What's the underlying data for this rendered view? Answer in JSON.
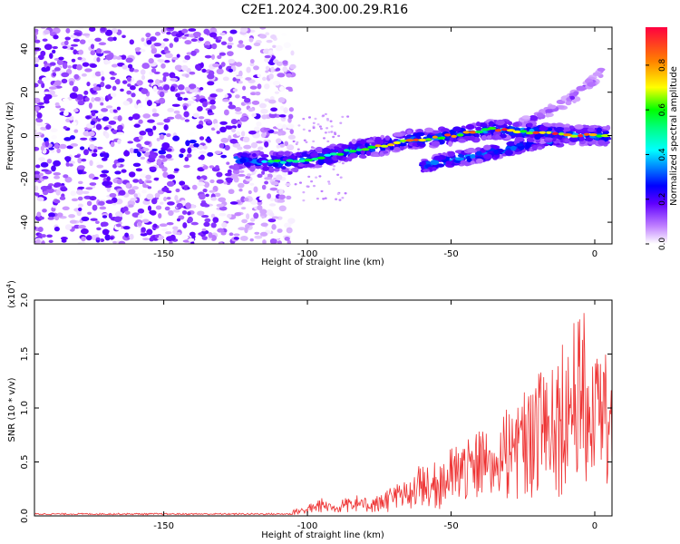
{
  "title": "C2E1.2024.300.00.29.R16",
  "chart_data": [
    {
      "type": "heatmap",
      "xlabel": "Height of straight line (km)",
      "ylabel": "Frequency (Hz)",
      "xlim": [
        -195,
        6
      ],
      "ylim": [
        -50,
        50
      ],
      "x_ticks": [
        -150,
        -100,
        -50,
        0
      ],
      "y_ticks": [
        -40,
        -20,
        0,
        20,
        40
      ],
      "colorbar": {
        "label": "Normalized spectral amplitude",
        "range": [
          0.0,
          0.97
        ],
        "ticks": [
          0.0,
          0.2,
          0.4,
          0.6,
          0.8
        ],
        "tick_labels": [
          "0.0",
          "0.2",
          "0.4",
          "0.6",
          "0.8"
        ],
        "stops": [
          {
            "v": 0.0,
            "color": "#ffffff"
          },
          {
            "v": 0.08,
            "color": "#c080ff"
          },
          {
            "v": 0.18,
            "color": "#6000ff"
          },
          {
            "v": 0.26,
            "color": "#0000ff"
          },
          {
            "v": 0.34,
            "color": "#0080ff"
          },
          {
            "v": 0.42,
            "color": "#00ffff"
          },
          {
            "v": 0.52,
            "color": "#00ff80"
          },
          {
            "v": 0.6,
            "color": "#00ff00"
          },
          {
            "v": 0.7,
            "color": "#ffff00"
          },
          {
            "v": 0.82,
            "color": "#ff8000"
          },
          {
            "v": 0.97,
            "color": "#ff0040"
          }
        ]
      },
      "trace_main": {
        "x": [
          -125,
          -115,
          -105,
          -95,
          -85,
          -75,
          -65,
          -55,
          -45,
          -35,
          -25,
          -15,
          -5,
          0,
          5
        ],
        "freq": [
          -11,
          -12,
          -12,
          -10,
          -7,
          -5,
          -2,
          -1,
          1,
          3,
          2,
          1,
          0,
          0,
          0
        ]
      },
      "trace_lower": {
        "x": [
          -60,
          -50,
          -40,
          -30,
          -20,
          -10
        ],
        "freq": [
          -14,
          -11,
          -9,
          -6,
          -3,
          -1
        ]
      },
      "trace_upper": {
        "x": [
          -25,
          -18,
          -12,
          -6,
          0,
          3
        ],
        "freq": [
          6,
          10,
          14,
          19,
          26,
          30
        ]
      },
      "noise_region": {
        "x_end": -105,
        "freq_center": -5
      }
    },
    {
      "type": "line",
      "xlabel": "Height of straight line (km)",
      "ylabel": "SNR (10 * v/v)",
      "multiplier_label": "(x10",
      "multiplier_exp": "4",
      "multiplier_close": ")",
      "xlim": [
        -195,
        6
      ],
      "ylim": [
        0,
        2.0
      ],
      "x_ticks": [
        -150,
        -100,
        -50,
        0
      ],
      "y_ticks": [
        0.0,
        0.5,
        1.0,
        1.5,
        2.0
      ],
      "y_tick_labels": [
        "0.0",
        "0.5",
        "1.0",
        "1.5",
        "2.0"
      ],
      "series_color": "#ee3333",
      "envelope": {
        "x": [
          -195,
          -120,
          -110,
          -100,
          -95,
          -90,
          -85,
          -80,
          -75,
          -70,
          -65,
          -60,
          -55,
          -50,
          -45,
          -40,
          -35,
          -30,
          -25,
          -20,
          -15,
          -10,
          -5,
          0,
          4,
          6
        ],
        "snr": [
          0.02,
          0.02,
          0.04,
          0.1,
          0.18,
          0.15,
          0.22,
          0.17,
          0.2,
          0.3,
          0.35,
          0.5,
          0.5,
          0.65,
          0.75,
          0.85,
          0.9,
          1.1,
          1.2,
          1.6,
          1.55,
          1.75,
          1.95,
          1.7,
          1.6,
          1.5
        ]
      }
    }
  ]
}
